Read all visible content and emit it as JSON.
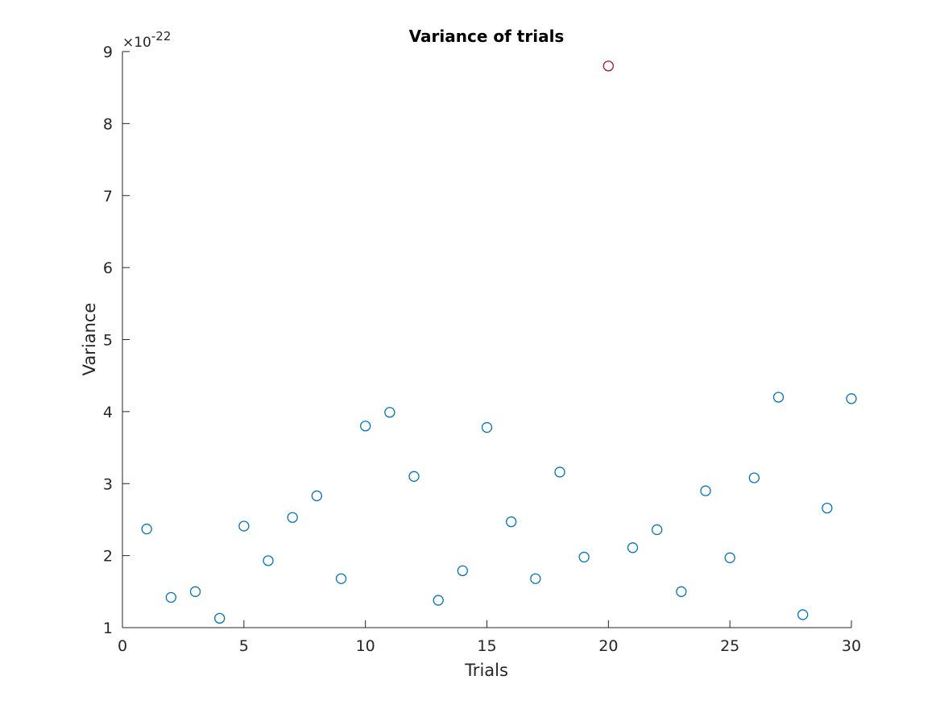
{
  "chart_data": {
    "type": "scatter",
    "title": "Variance of trials",
    "xlabel": "Trials",
    "ylabel": "Variance",
    "y_exponent_label": "×10",
    "y_exponent_power": "-22",
    "xlim": [
      0,
      30
    ],
    "ylim": [
      1,
      9
    ],
    "xticks": [
      0,
      5,
      10,
      15,
      20,
      25,
      30
    ],
    "yticks": [
      1,
      2,
      3,
      4,
      5,
      6,
      7,
      8,
      9
    ],
    "grid": false,
    "legend": "none",
    "colors": {
      "normal": "#0072BD",
      "highlight": "#A2142F"
    },
    "series": [
      {
        "color": "#0072BD",
        "points": [
          {
            "x": 1,
            "y": 2.37
          },
          {
            "x": 2,
            "y": 1.42
          },
          {
            "x": 3,
            "y": 1.5
          },
          {
            "x": 4,
            "y": 1.13
          },
          {
            "x": 5,
            "y": 2.41
          },
          {
            "x": 6,
            "y": 1.93
          },
          {
            "x": 7,
            "y": 2.53
          },
          {
            "x": 8,
            "y": 2.83
          },
          {
            "x": 9,
            "y": 1.68
          },
          {
            "x": 10,
            "y": 3.8
          },
          {
            "x": 11,
            "y": 3.99
          },
          {
            "x": 12,
            "y": 3.1
          },
          {
            "x": 13,
            "y": 1.38
          },
          {
            "x": 14,
            "y": 1.79
          },
          {
            "x": 15,
            "y": 3.78
          },
          {
            "x": 16,
            "y": 2.47
          },
          {
            "x": 17,
            "y": 1.68
          },
          {
            "x": 18,
            "y": 3.16
          },
          {
            "x": 19,
            "y": 1.98
          },
          {
            "x": 21,
            "y": 2.11
          },
          {
            "x": 22,
            "y": 2.36
          },
          {
            "x": 23,
            "y": 1.5
          },
          {
            "x": 24,
            "y": 2.9
          },
          {
            "x": 25,
            "y": 1.97
          },
          {
            "x": 26,
            "y": 3.08
          },
          {
            "x": 27,
            "y": 4.2
          },
          {
            "x": 28,
            "y": 1.18
          },
          {
            "x": 29,
            "y": 2.66
          },
          {
            "x": 30,
            "y": 4.18
          }
        ]
      },
      {
        "color": "#A2142F",
        "points": [
          {
            "x": 20,
            "y": 8.8
          }
        ]
      }
    ]
  }
}
